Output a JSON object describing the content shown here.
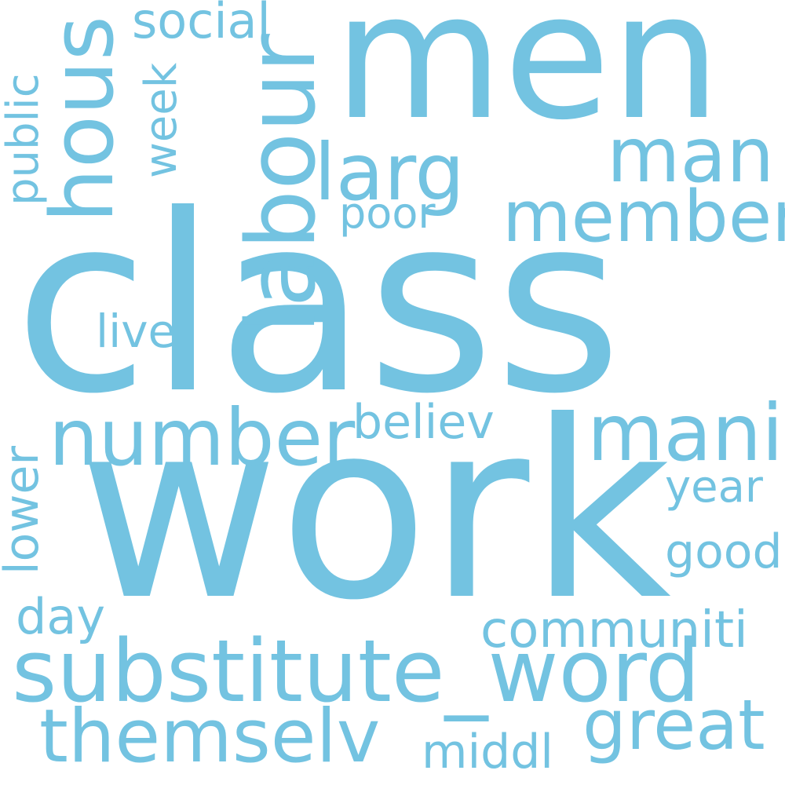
{
  "word_cloud": {
    "color": "#73c3e1",
    "words": [
      {
        "text": "class"
      },
      {
        "text": "work"
      },
      {
        "text": "men"
      },
      {
        "text": "substitute_word"
      },
      {
        "text": "labour"
      },
      {
        "text": "hous"
      },
      {
        "text": "number"
      },
      {
        "text": "member"
      },
      {
        "text": "mani"
      },
      {
        "text": "themselv"
      },
      {
        "text": "larg"
      },
      {
        "text": "man"
      },
      {
        "text": "great"
      },
      {
        "text": "communiti"
      },
      {
        "text": "social"
      },
      {
        "text": "public"
      },
      {
        "text": "week"
      },
      {
        "text": "poor"
      },
      {
        "text": "live"
      },
      {
        "text": "believ"
      },
      {
        "text": "year"
      },
      {
        "text": "lower"
      },
      {
        "text": "good"
      },
      {
        "text": "day"
      },
      {
        "text": "middl"
      }
    ]
  }
}
